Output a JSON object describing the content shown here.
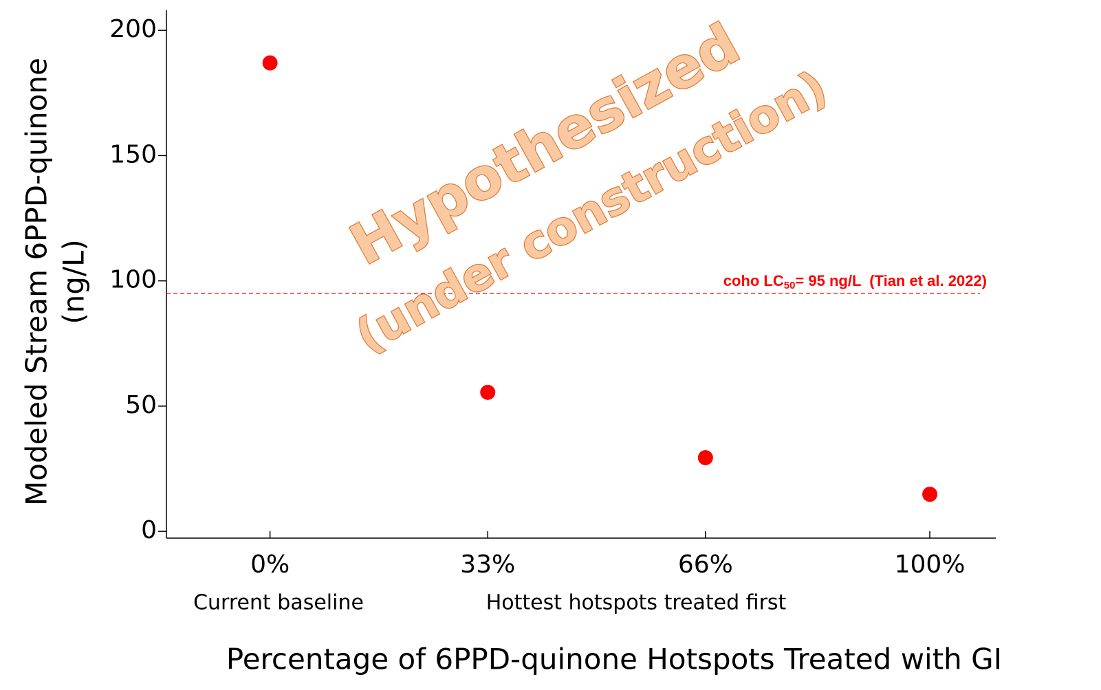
{
  "chart_data": {
    "type": "scatter",
    "y_label_lines": [
      "Modeled Stream 6PPD-quinone",
      "(ng/L)"
    ],
    "x_label": "Percentage of 6PPD-quinone Hotspots Treated with GI",
    "x_sublabels": [
      "Current baseline",
      "Hottest hotspots treated first"
    ],
    "x": [
      0,
      33,
      66,
      100
    ],
    "series": [
      {
        "name": null,
        "color": "#ff0000",
        "values": [
          187,
          55.5,
          29.4,
          14.8
        ]
      }
    ],
    "xlim": [
      -15.7,
      110
    ],
    "xticks": [
      {
        "value": 0,
        "label": "0%"
      },
      {
        "value": 33,
        "label": "33%"
      },
      {
        "value": 66,
        "label": "66%"
      },
      {
        "value": 100,
        "label": "100%"
      }
    ],
    "ylim": [
      -2.7,
      208
    ],
    "yticks": [
      0,
      50,
      100,
      150,
      200
    ],
    "reference_line": {
      "value": 95,
      "color": "#ff0000",
      "label": {
        "text": "coho LC",
        "subscript": "50",
        "suffix": "= 95 ng/L  (Tian et al. 2022)"
      }
    },
    "watermark": [
      "Hypothesized",
      "(under construction)"
    ]
  }
}
